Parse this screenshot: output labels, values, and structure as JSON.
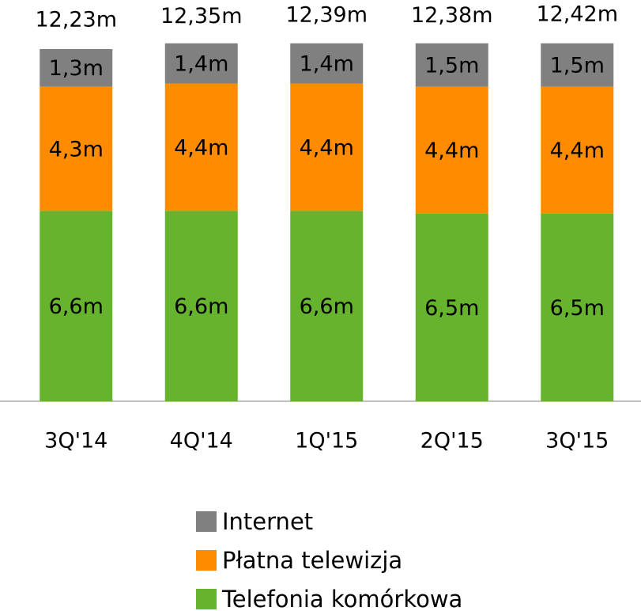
{
  "chart_data": {
    "type": "stacked_bar",
    "categories": [
      "3Q'14",
      "4Q'14",
      "1Q'15",
      "2Q'15",
      "3Q'15"
    ],
    "series": [
      {
        "name": "Telefonia komórkowa",
        "color": "#66b32e",
        "values": [
          6.6,
          6.6,
          6.6,
          6.5,
          6.5
        ],
        "value_labels": [
          "6,6m",
          "6,6m",
          "6,6m",
          "6,5m",
          "6,5m"
        ]
      },
      {
        "name": "Płatna telewizja",
        "color": "#ff8c00",
        "values": [
          4.3,
          4.4,
          4.4,
          4.4,
          4.4
        ],
        "value_labels": [
          "4,3m",
          "4,4m",
          "4,4m",
          "4,4m",
          "4,4m"
        ]
      },
      {
        "name": "Internet",
        "color": "#808080",
        "values": [
          1.3,
          1.4,
          1.4,
          1.5,
          1.5
        ],
        "value_labels": [
          "1,3m",
          "1,4m",
          "1,4m",
          "1,5m",
          "1,5m"
        ]
      }
    ],
    "totals": [
      12.23,
      12.35,
      12.39,
      12.38,
      12.42
    ],
    "total_labels": [
      "12,23m",
      "12,35m",
      "12,39m",
      "12,38m",
      "12,42m"
    ],
    "ylim": [
      0,
      13.9
    ]
  }
}
